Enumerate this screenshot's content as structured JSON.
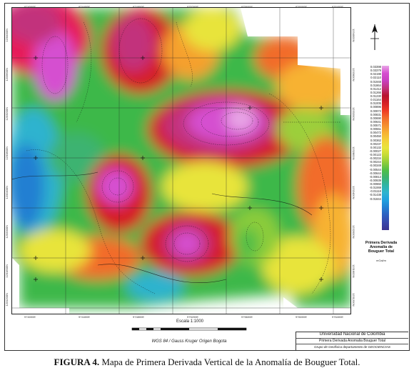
{
  "map": {
    "coords_top": [
      "974000E",
      "974400E",
      "974800E",
      "975200E",
      "975600E",
      "976000E",
      "976400E"
    ],
    "coords_bottom": [
      "974000E",
      "974400E",
      "974800E",
      "975200E",
      "975600E",
      "976000E",
      "976400E"
    ],
    "coords_left": [
      "1234000N",
      "1233600N",
      "1233200N",
      "1232800N",
      "1232400N",
      "1232000N",
      "1231600N",
      "1231200N"
    ],
    "coords_right": [
      "1234000N",
      "1233600N",
      "1233200N",
      "1232800N",
      "1232400N",
      "1232000N",
      "1231600N",
      "1231200N"
    ]
  },
  "legend": {
    "title_line1": "Primera Derivada",
    "title_line2": "Anomalía de",
    "title_line3": "Bouguer Total",
    "unit": "mGal/m",
    "values": [
      "0.03398",
      "0.03379",
      "0.02198",
      "0.02110",
      "0.01948",
      "0.01864",
      "0.01412",
      "0.01266",
      "0.01230",
      "0.01164",
      "0.01005",
      "0.00896",
      "0.00972",
      "0.00831",
      "0.00690",
      "0.00641",
      "0.00571",
      "0.00551",
      "0.00472",
      "0.00450",
      "0.00362",
      "0.00237",
      "0.00132",
      "-0.00027",
      "-0.00122",
      "-0.00234",
      "-0.00244",
      "-0.00349",
      "-0.00544",
      "-0.00644",
      "-0.00813",
      "-0.00939",
      "-0.00960",
      "-0.01069",
      "-0.01118",
      "-0.01438",
      "-0.01844"
    ]
  },
  "scale": {
    "label": "Escala 1:1000",
    "projection": "WGS 84 / Gauss Kruger Origen Bogota"
  },
  "title_block": {
    "institution": "Universidad Nacional de Colombia",
    "map_title": "Primera Derivada Anomalia Bouguer Total",
    "group": "Grupo de Geofísica departamento de GEOCIENCIAS"
  },
  "caption": {
    "label": "FIGURA 4.",
    "text": " Mapa de Primera Derivada Vertical de la Anomalía de Bouguer Total."
  }
}
